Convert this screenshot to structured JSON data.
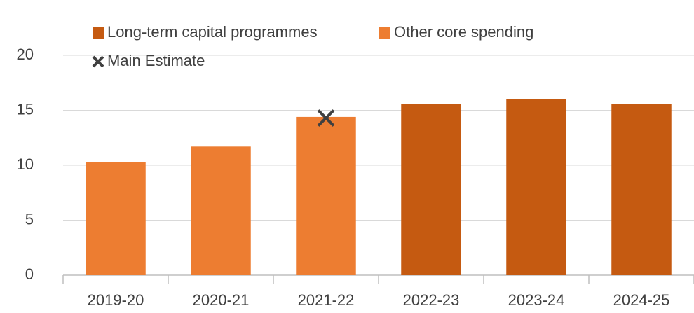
{
  "chart_data": {
    "type": "bar",
    "categories": [
      "2019-20",
      "2020-21",
      "2021-22",
      "2022-23",
      "2023-24",
      "2024-25"
    ],
    "series": [
      {
        "name": "Long-term capital programmes",
        "color": "#c55a11",
        "values": [
          null,
          null,
          null,
          15.6,
          16.0,
          15.6
        ]
      },
      {
        "name": "Other core spending",
        "color": "#ed7d31",
        "values": [
          10.3,
          11.7,
          14.4,
          null,
          null,
          null
        ]
      },
      {
        "name": "Main Estimate",
        "color": "#404040",
        "marker": "x",
        "values": [
          null,
          null,
          14.3,
          null,
          null,
          null
        ]
      }
    ],
    "ylim": [
      0,
      20
    ],
    "yticks": [
      0,
      5,
      10,
      15,
      20
    ],
    "grid": true
  }
}
